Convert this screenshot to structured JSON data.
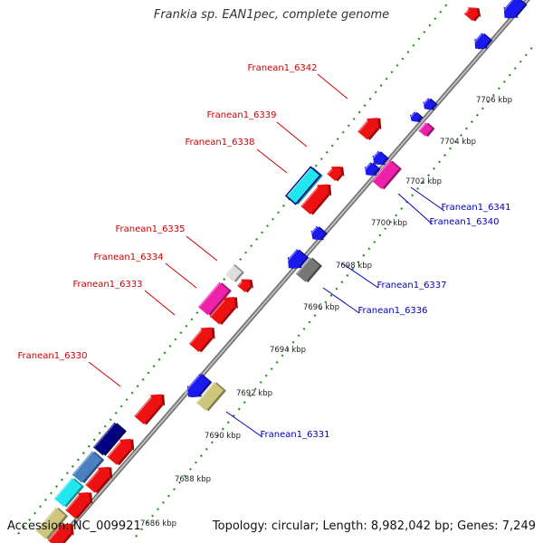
{
  "title": "Frankia sp. EAN1pec, complete genome",
  "footer": {
    "accession": "Accession: NC_009921",
    "summary": "Topology: circular; Length: 8,982,042 bp; Genes: 7,249"
  },
  "colors": {
    "forward_label": "#cc0000",
    "reverse_label": "#0000bb",
    "backbone": "#8a8a8a",
    "dotted_track": "#2e8b22"
  },
  "scale_ticks": [
    "7686 kbp",
    "7688 kbp",
    "7690 kbp",
    "7692 kbp",
    "7694 kbp",
    "7696 kbp",
    "7698 kbp",
    "7700 kbp",
    "7702 kbp",
    "7704 kbp",
    "7706 kbp"
  ],
  "forward_labels": [
    "Franean1_6342",
    "Franean1_6339",
    "Franean1_6338",
    "Franean1_6335",
    "Franean1_6334",
    "Franean1_6333",
    "Franean1_6330"
  ],
  "reverse_labels": [
    "Franean1_6341",
    "Franean1_6340",
    "Franean1_6337",
    "Franean1_6336",
    "Franean1_6331"
  ]
}
